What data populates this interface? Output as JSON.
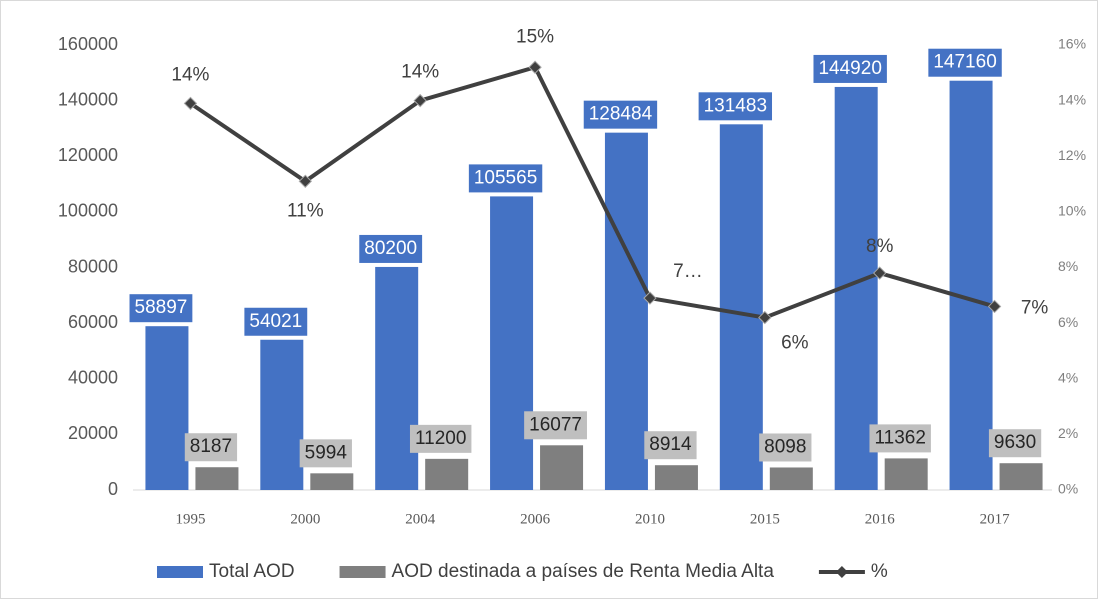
{
  "chart_data": {
    "type": "bar",
    "categories": [
      "1995",
      "2000",
      "2004",
      "2006",
      "2010",
      "2015",
      "2016",
      "2017"
    ],
    "series": [
      {
        "name": "Total AOD",
        "type": "bar",
        "color": "#4472c4",
        "values": [
          58897,
          54021,
          80200,
          105565,
          128484,
          131483,
          144920,
          147160
        ]
      },
      {
        "name": "AOD destinada a países de Renta Media Alta",
        "type": "bar",
        "color": "#7f7f7f",
        "values": [
          8187,
          5994,
          11200,
          16077,
          8914,
          8098,
          11362,
          9630
        ]
      },
      {
        "name": "%",
        "type": "line",
        "axis": "y2",
        "color": "#404040",
        "values": [
          13.9,
          11.1,
          14,
          15.2,
          6.9,
          6.2,
          7.8,
          6.6
        ],
        "value_labels": [
          "14%",
          "11%",
          "14%",
          "15%",
          "7…",
          "6%",
          "8%",
          "7%"
        ]
      }
    ],
    "ylim": [
      0,
      160000
    ],
    "yticks": [
      0,
      20000,
      40000,
      60000,
      80000,
      100000,
      120000,
      140000,
      160000
    ],
    "y2lim": [
      0,
      16
    ],
    "y2ticks": [
      {
        "value": 0,
        "label": "0%"
      },
      {
        "value": 2,
        "label": "2%"
      },
      {
        "value": 4,
        "label": "4%"
      },
      {
        "value": 6,
        "label": "6%"
      },
      {
        "value": 8,
        "label": "8%"
      },
      {
        "value": 10,
        "label": "10%"
      },
      {
        "value": 12,
        "label": "12%"
      },
      {
        "value": 14,
        "label": "14%"
      },
      {
        "value": 16,
        "label": "16%"
      }
    ],
    "legend": "bottom"
  }
}
